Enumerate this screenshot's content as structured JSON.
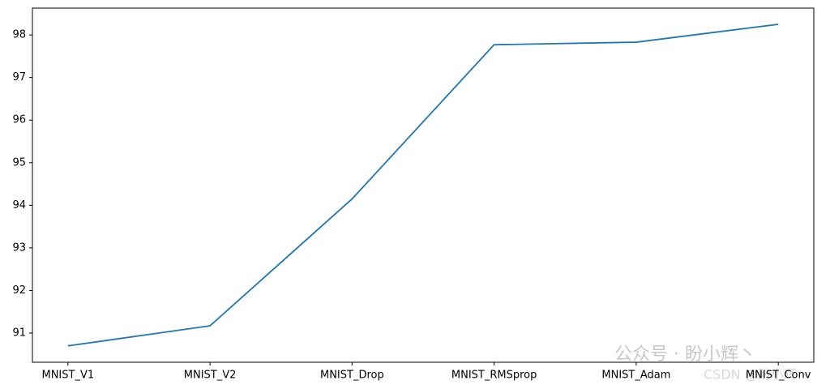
{
  "chart_data": {
    "type": "line",
    "categories": [
      "MNIST_V1",
      "MNIST_V2",
      "MNIST_Drop",
      "MNIST_RMSprop",
      "MNIST_Adam",
      "MNIST_Conv"
    ],
    "series": [
      {
        "color": "#1f77b4",
        "values": [
          90.7,
          91.17,
          94.15,
          97.77,
          97.83,
          98.25
        ]
      }
    ],
    "ylim": [
      90.315,
      98.63
    ],
    "yticks": [
      91,
      92,
      93,
      94,
      95,
      96,
      97,
      98
    ],
    "annotations": [
      "公众号 · 盼小辉丶",
      "CSDN @盼小辉丶"
    ]
  }
}
